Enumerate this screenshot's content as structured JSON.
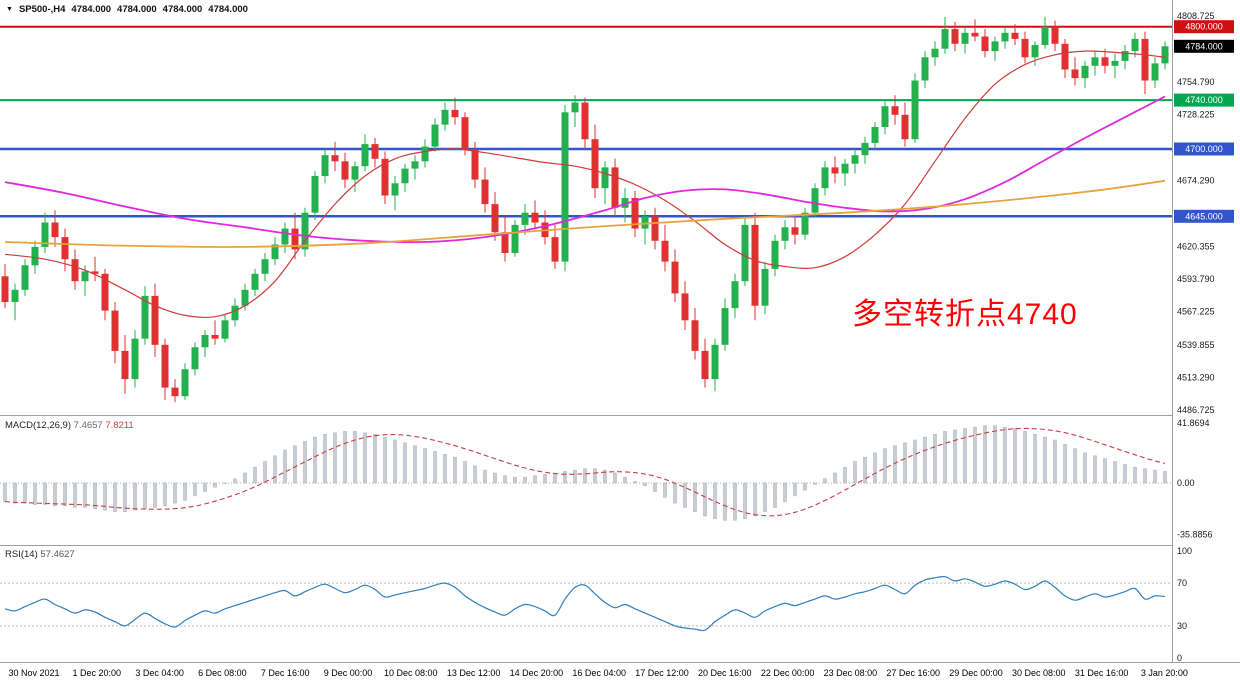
{
  "header": {
    "symbol": "SP500-,H4",
    "open": "4784.000",
    "high": "4784.000",
    "low": "4784.000",
    "close": "4784.000"
  },
  "annotation": {
    "text": "多空转折点4740",
    "color": "#FF0000"
  },
  "colors": {
    "bull": "#22B14C",
    "bear": "#E03131",
    "macd_bar": "#C6CDD4",
    "macd_bar_border": "#A9B0B7",
    "macd_signal": "#C94040",
    "rsi_line": "#2E7FBE",
    "axis_text": "#1A1A1A",
    "separator": "#9AA0A6",
    "zero_line": "#AAAAAA",
    "level_dotted": "#BBBBBB",
    "badge_current": "#000000"
  },
  "chart_data": {
    "type": "candlestick",
    "title": "SP500-,H4",
    "timeframe": "H4",
    "price_range": [
      4486.725,
      4808.725
    ],
    "grid": false,
    "price_ticks": [
      4808.725,
      4754.79,
      4728.225,
      4674.29,
      4620.355,
      4593.79,
      4567.225,
      4539.855,
      4513.29,
      4486.725
    ],
    "hlines": [
      {
        "price": 4800.0,
        "color": "#CC1111",
        "width": 2
      },
      {
        "price": 4740.0,
        "color": "#00A651",
        "width": 2
      },
      {
        "price": 4700.0,
        "color": "#3355CC",
        "width": 2.5
      },
      {
        "price": 4645.0,
        "color": "#3355CC",
        "width": 2.5
      }
    ],
    "current_price": 4784.0,
    "candles": [
      [
        4596,
        4606,
        4570,
        4575
      ],
      [
        4575,
        4590,
        4560,
        4585
      ],
      [
        4585,
        4610,
        4580,
        4605
      ],
      [
        4605,
        4625,
        4598,
        4620
      ],
      [
        4620,
        4648,
        4615,
        4640
      ],
      [
        4640,
        4650,
        4620,
        4628
      ],
      [
        4628,
        4635,
        4600,
        4610
      ],
      [
        4610,
        4618,
        4585,
        4592
      ],
      [
        4592,
        4605,
        4580,
        4600
      ],
      [
        4600,
        4612,
        4592,
        4598
      ],
      [
        4598,
        4602,
        4560,
        4568
      ],
      [
        4568,
        4575,
        4525,
        4535
      ],
      [
        4535,
        4548,
        4500,
        4512
      ],
      [
        4512,
        4552,
        4505,
        4545
      ],
      [
        4545,
        4588,
        4540,
        4580
      ],
      [
        4580,
        4590,
        4530,
        4540
      ],
      [
        4540,
        4545,
        4495,
        4505
      ],
      [
        4505,
        4512,
        4493,
        4498
      ],
      [
        4498,
        4525,
        4495,
        4520
      ],
      [
        4520,
        4542,
        4515,
        4538
      ],
      [
        4538,
        4552,
        4530,
        4548
      ],
      [
        4548,
        4560,
        4540,
        4545
      ],
      [
        4545,
        4565,
        4542,
        4560
      ],
      [
        4560,
        4578,
        4555,
        4572
      ],
      [
        4572,
        4590,
        4568,
        4585
      ],
      [
        4585,
        4602,
        4580,
        4598
      ],
      [
        4598,
        4615,
        4592,
        4610
      ],
      [
        4610,
        4628,
        4605,
        4622
      ],
      [
        4622,
        4640,
        4615,
        4635
      ],
      [
        4635,
        4648,
        4610,
        4618
      ],
      [
        4618,
        4652,
        4612,
        4648
      ],
      [
        4648,
        4682,
        4642,
        4678
      ],
      [
        4678,
        4700,
        4672,
        4695
      ],
      [
        4695,
        4706,
        4682,
        4690
      ],
      [
        4690,
        4697,
        4668,
        4675
      ],
      [
        4675,
        4690,
        4665,
        4686
      ],
      [
        4686,
        4712,
        4682,
        4704
      ],
      [
        4704,
        4709,
        4685,
        4692
      ],
      [
        4692,
        4698,
        4655,
        4662
      ],
      [
        4662,
        4678,
        4650,
        4672
      ],
      [
        4672,
        4688,
        4665,
        4684
      ],
      [
        4684,
        4695,
        4675,
        4690
      ],
      [
        4690,
        4708,
        4685,
        4702
      ],
      [
        4702,
        4725,
        4698,
        4720
      ],
      [
        4720,
        4738,
        4715,
        4732
      ],
      [
        4732,
        4742,
        4720,
        4726
      ],
      [
        4726,
        4730,
        4695,
        4700
      ],
      [
        4700,
        4706,
        4668,
        4675
      ],
      [
        4675,
        4685,
        4648,
        4655
      ],
      [
        4655,
        4665,
        4625,
        4632
      ],
      [
        4632,
        4645,
        4608,
        4615
      ],
      [
        4615,
        4642,
        4612,
        4638
      ],
      [
        4638,
        4655,
        4630,
        4648
      ],
      [
        4648,
        4658,
        4635,
        4640
      ],
      [
        4640,
        4650,
        4622,
        4628
      ],
      [
        4628,
        4638,
        4602,
        4608
      ],
      [
        4608,
        4736,
        4600,
        4730
      ],
      [
        4730,
        4744,
        4718,
        4738
      ],
      [
        4738,
        4742,
        4700,
        4708
      ],
      [
        4708,
        4720,
        4660,
        4668
      ],
      [
        4668,
        4690,
        4655,
        4685
      ],
      [
        4685,
        4692,
        4645,
        4652
      ],
      [
        4652,
        4668,
        4640,
        4660
      ],
      [
        4660,
        4666,
        4628,
        4635
      ],
      [
        4635,
        4650,
        4622,
        4645
      ],
      [
        4645,
        4652,
        4618,
        4625
      ],
      [
        4625,
        4638,
        4600,
        4608
      ],
      [
        4608,
        4618,
        4575,
        4582
      ],
      [
        4582,
        4592,
        4552,
        4560
      ],
      [
        4560,
        4570,
        4528,
        4535
      ],
      [
        4535,
        4545,
        4505,
        4512
      ],
      [
        4512,
        4545,
        4502,
        4540
      ],
      [
        4540,
        4578,
        4535,
        4570
      ],
      [
        4570,
        4598,
        4562,
        4592
      ],
      [
        4592,
        4645,
        4588,
        4638
      ],
      [
        4638,
        4648,
        4560,
        4572
      ],
      [
        4572,
        4608,
        4565,
        4602
      ],
      [
        4602,
        4630,
        4596,
        4625
      ],
      [
        4625,
        4642,
        4618,
        4636
      ],
      [
        4636,
        4646,
        4622,
        4630
      ],
      [
        4630,
        4652,
        4626,
        4648
      ],
      [
        4648,
        4672,
        4644,
        4668
      ],
      [
        4668,
        4690,
        4662,
        4685
      ],
      [
        4685,
        4694,
        4672,
        4680
      ],
      [
        4680,
        4692,
        4670,
        4688
      ],
      [
        4688,
        4700,
        4680,
        4695
      ],
      [
        4695,
        4710,
        4688,
        4705
      ],
      [
        4705,
        4722,
        4700,
        4718
      ],
      [
        4718,
        4740,
        4712,
        4735
      ],
      [
        4735,
        4744,
        4720,
        4728
      ],
      [
        4728,
        4738,
        4702,
        4708
      ],
      [
        4708,
        4762,
        4705,
        4756
      ],
      [
        4756,
        4780,
        4750,
        4775
      ],
      [
        4775,
        4788,
        4768,
        4782
      ],
      [
        4782,
        4808,
        4778,
        4798
      ],
      [
        4798,
        4804,
        4780,
        4786
      ],
      [
        4786,
        4800,
        4778,
        4795
      ],
      [
        4795,
        4806,
        4788,
        4792
      ],
      [
        4792,
        4798,
        4775,
        4780
      ],
      [
        4780,
        4792,
        4772,
        4788
      ],
      [
        4788,
        4800,
        4782,
        4795
      ],
      [
        4795,
        4802,
        4785,
        4790
      ],
      [
        4790,
        4796,
        4770,
        4775
      ],
      [
        4775,
        4788,
        4768,
        4785
      ],
      [
        4785,
        4808,
        4782,
        4800
      ],
      [
        4800,
        4805,
        4780,
        4786
      ],
      [
        4786,
        4790,
        4758,
        4765
      ],
      [
        4765,
        4775,
        4752,
        4758
      ],
      [
        4758,
        4772,
        4750,
        4768
      ],
      [
        4768,
        4780,
        4760,
        4775
      ],
      [
        4775,
        4782,
        4762,
        4768
      ],
      [
        4768,
        4778,
        4758,
        4772
      ],
      [
        4772,
        4785,
        4765,
        4780
      ],
      [
        4780,
        4795,
        4775,
        4790
      ],
      [
        4790,
        4796,
        4745,
        4756
      ],
      [
        4756,
        4775,
        4750,
        4770
      ],
      [
        4770,
        4788,
        4765,
        4784
      ]
    ],
    "overlays": [
      {
        "name": "ma-fast-red",
        "color": "#D03A3A",
        "width": 1.2,
        "anchors": [
          [
            0,
            4614
          ],
          [
            4,
            4610
          ],
          [
            8,
            4601
          ],
          [
            12,
            4585
          ],
          [
            15,
            4572
          ],
          [
            18,
            4564
          ],
          [
            21,
            4563
          ],
          [
            24,
            4572
          ],
          [
            27,
            4592
          ],
          [
            30,
            4625
          ],
          [
            33,
            4655
          ],
          [
            36,
            4678
          ],
          [
            39,
            4692
          ],
          [
            42,
            4698
          ],
          [
            45,
            4700
          ],
          [
            48,
            4697
          ],
          [
            51,
            4693
          ],
          [
            54,
            4689
          ],
          [
            57,
            4686
          ],
          [
            60,
            4680
          ],
          [
            63,
            4671
          ],
          [
            66,
            4658
          ],
          [
            69,
            4641
          ],
          [
            72,
            4622
          ],
          [
            75,
            4609
          ],
          [
            78,
            4604
          ],
          [
            81,
            4603
          ],
          [
            84,
            4612
          ],
          [
            87,
            4630
          ],
          [
            90,
            4655
          ],
          [
            93,
            4690
          ],
          [
            96,
            4725
          ],
          [
            99,
            4753
          ],
          [
            102,
            4769
          ],
          [
            105,
            4777
          ],
          [
            108,
            4780
          ],
          [
            111,
            4779
          ],
          [
            114,
            4777
          ],
          [
            116,
            4775
          ]
        ]
      },
      {
        "name": "ma-mid-magenta",
        "color": "#DD2ADD",
        "width": 1.8,
        "anchors": [
          [
            0,
            4673
          ],
          [
            6,
            4664
          ],
          [
            12,
            4653
          ],
          [
            18,
            4643
          ],
          [
            24,
            4636
          ],
          [
            30,
            4629
          ],
          [
            36,
            4625
          ],
          [
            42,
            4624
          ],
          [
            48,
            4628
          ],
          [
            54,
            4637
          ],
          [
            60,
            4650
          ],
          [
            64,
            4660
          ],
          [
            68,
            4666
          ],
          [
            72,
            4667
          ],
          [
            76,
            4663
          ],
          [
            80,
            4657
          ],
          [
            84,
            4652
          ],
          [
            88,
            4649
          ],
          [
            92,
            4651
          ],
          [
            96,
            4659
          ],
          [
            100,
            4673
          ],
          [
            104,
            4691
          ],
          [
            108,
            4709
          ],
          [
            112,
            4726
          ],
          [
            116,
            4743
          ]
        ]
      },
      {
        "name": "ma-slow-orange",
        "color": "#E8A33D",
        "width": 1.8,
        "anchors": [
          [
            0,
            4624
          ],
          [
            12,
            4621
          ],
          [
            24,
            4620
          ],
          [
            36,
            4623
          ],
          [
            48,
            4630
          ],
          [
            60,
            4637
          ],
          [
            72,
            4643
          ],
          [
            84,
            4648
          ],
          [
            96,
            4655
          ],
          [
            108,
            4665
          ],
          [
            116,
            4674
          ]
        ]
      }
    ],
    "macd": {
      "label": "MACD(12,26,9)",
      "values": [
        "7.4657",
        "7.8211"
      ],
      "ticks": [
        {
          "v": 41.8694,
          "label": "41.8694"
        },
        {
          "v": 0,
          "label": "0.00"
        },
        {
          "v": -35.8856,
          "label": "-35.8856"
        }
      ],
      "histogram": [
        -13,
        -14,
        -14,
        -15,
        -15,
        -16,
        -16,
        -17,
        -17,
        -18,
        -19,
        -20,
        -20,
        -19,
        -18,
        -17,
        -16,
        -14,
        -12,
        -9,
        -6,
        -3,
        0,
        3,
        7,
        11,
        15,
        19,
        23,
        26,
        29,
        32,
        34,
        35,
        36,
        36,
        35,
        34,
        32,
        30,
        28,
        26,
        24,
        22,
        20,
        18,
        15,
        12,
        9,
        7,
        5,
        4,
        4,
        5,
        6,
        7,
        8,
        9,
        10,
        10,
        9,
        7,
        4,
        1,
        -2,
        -6,
        -10,
        -14,
        -17,
        -20,
        -23,
        -25,
        -26,
        -26,
        -25,
        -23,
        -20,
        -17,
        -13,
        -9,
        -5,
        -1,
        3,
        7,
        11,
        15,
        18,
        21,
        24,
        26,
        28,
        30,
        32,
        34,
        36,
        37,
        38,
        39,
        40,
        40,
        39,
        38,
        36,
        34,
        32,
        30,
        27,
        24,
        21,
        19,
        17,
        15,
        13,
        11,
        10,
        9,
        8
      ]
    },
    "rsi": {
      "label": "RSI(14)",
      "value": "57.4627",
      "ticks": [
        {
          "v": 100,
          "label": "100"
        },
        {
          "v": 70,
          "label": "70"
        },
        {
          "v": 30,
          "label": "30"
        },
        {
          "v": 0,
          "label": "0"
        }
      ],
      "levels": [
        70,
        30
      ],
      "values": [
        46,
        44,
        48,
        52,
        55,
        50,
        46,
        42,
        45,
        43,
        38,
        34,
        30,
        36,
        42,
        37,
        32,
        29,
        35,
        40,
        44,
        42,
        46,
        49,
        52,
        55,
        58,
        61,
        63,
        58,
        62,
        66,
        69,
        65,
        61,
        64,
        68,
        64,
        57,
        59,
        61,
        63,
        65,
        68,
        70,
        66,
        58,
        52,
        47,
        43,
        40,
        46,
        50,
        48,
        44,
        40,
        55,
        66,
        68,
        60,
        52,
        47,
        50,
        46,
        42,
        38,
        34,
        30,
        28,
        27,
        26,
        34,
        40,
        45,
        42,
        38,
        44,
        48,
        51,
        49,
        52,
        55,
        58,
        55,
        57,
        60,
        62,
        65,
        68,
        64,
        60,
        68,
        73,
        75,
        76,
        72,
        74,
        71,
        67,
        69,
        72,
        69,
        64,
        67,
        72,
        66,
        58,
        54,
        57,
        60,
        57,
        59,
        62,
        65,
        55,
        58,
        57.46
      ]
    },
    "time_labels": [
      "30 Nov 2021",
      "1 Dec 20:00",
      "3 Dec 04:00",
      "6 Dec 08:00",
      "7 Dec 16:00",
      "9 Dec 00:00",
      "10 Dec 08:00",
      "13 Dec 12:00",
      "14 Dec 20:00",
      "16 Dec 04:00",
      "17 Dec 12:00",
      "20 Dec 16:00",
      "22 Dec 00:00",
      "23 Dec 08:00",
      "27 Dec 16:00",
      "29 Dec 00:00",
      "30 Dec 08:00",
      "31 Dec 16:00",
      "3 Jan 20:00"
    ]
  }
}
